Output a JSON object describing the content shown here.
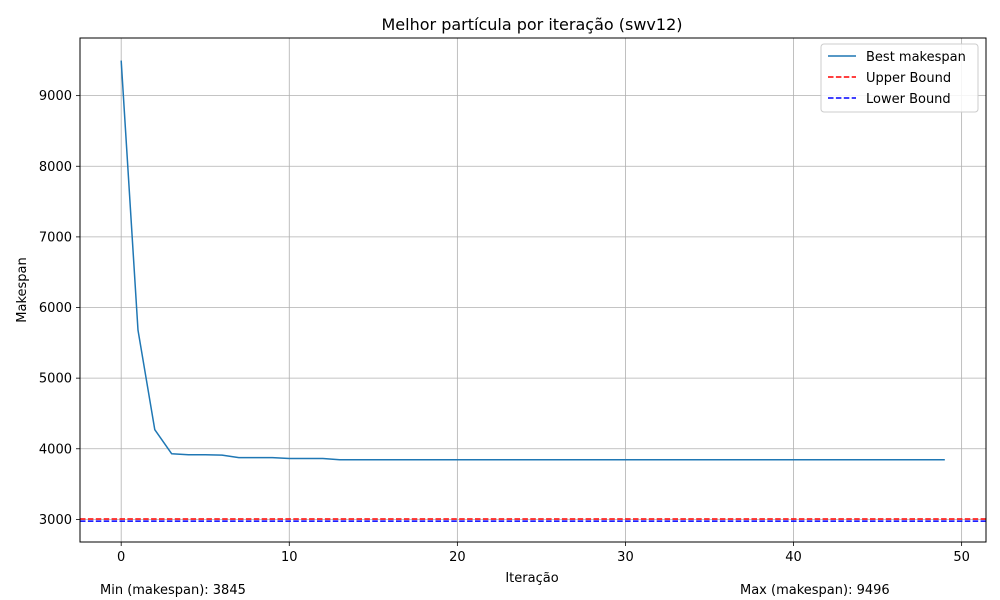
{
  "chart_data": {
    "type": "line",
    "title": "Melhor partícula por iteração (swv12)",
    "xlabel": "Iteração",
    "ylabel": "Makespan",
    "xlim": [
      -2.45,
      51.45
    ],
    "ylim": [
      2680,
      9816
    ],
    "xticks": [
      0,
      10,
      20,
      30,
      40,
      50
    ],
    "yticks": [
      3000,
      4000,
      5000,
      6000,
      7000,
      8000,
      9000
    ],
    "grid": true,
    "legend_position": "top-right",
    "series": [
      {
        "name": "Best makespan",
        "color": "#1f77b4",
        "linestyle": "solid",
        "x": [
          0,
          1,
          2,
          3,
          4,
          5,
          6,
          7,
          8,
          9,
          10,
          11,
          12,
          13,
          14,
          15,
          16,
          17,
          18,
          19,
          20,
          21,
          22,
          23,
          24,
          25,
          26,
          27,
          28,
          29,
          30,
          31,
          32,
          33,
          34,
          35,
          36,
          37,
          38,
          39,
          40,
          41,
          42,
          43,
          44,
          45,
          46,
          47,
          48,
          49
        ],
        "values": [
          9496,
          5680,
          4270,
          3930,
          3915,
          3915,
          3910,
          3875,
          3875,
          3875,
          3862,
          3862,
          3862,
          3845,
          3845,
          3845,
          3845,
          3845,
          3845,
          3845,
          3845,
          3845,
          3845,
          3845,
          3845,
          3845,
          3845,
          3845,
          3845,
          3845,
          3845,
          3845,
          3845,
          3845,
          3845,
          3845,
          3845,
          3845,
          3845,
          3845,
          3845,
          3845,
          3845,
          3845,
          3845,
          3845,
          3845,
          3845,
          3845,
          3845
        ]
      }
    ],
    "hlines": [
      {
        "name": "Upper Bound",
        "y": 3005,
        "color": "#ff0000",
        "linestyle": "dashed"
      },
      {
        "name": "Lower Bound",
        "y": 2975,
        "color": "#0000ff",
        "linestyle": "dashed"
      }
    ],
    "annotations": {
      "min_text": "Min (makespan): 3845",
      "max_text": "Max (makespan): 9496"
    }
  }
}
